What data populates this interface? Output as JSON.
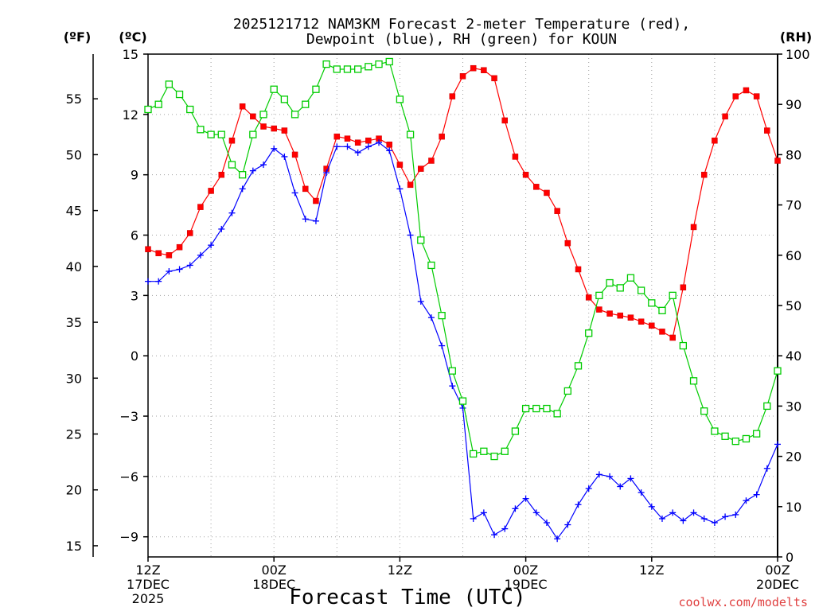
{
  "chart_data": {
    "type": "line",
    "title_line1": "2025121712 NAM3KM Forecast 2-meter Temperature (red),",
    "title_line2": "Dewpoint (blue), RH (green) for KOUN",
    "xlabel": "Forecast Time (UTC)",
    "watermark": "coolwx.com/modelts",
    "unit_labels": {
      "fahrenheit": "(ºF)",
      "celsius": "(ºC)",
      "rh": "(RH)"
    },
    "x_range_hours": [
      0,
      60
    ],
    "celsius_range": [
      -10,
      15
    ],
    "celsius_ticks": [
      "15",
      "12",
      "9",
      "6",
      "3",
      "0",
      "−3",
      "−6",
      "−9"
    ],
    "celsius_values": [
      15,
      12,
      9,
      6,
      3,
      0,
      -3,
      -6,
      -9
    ],
    "fahrenheit_ticks": [
      "55",
      "50",
      "45",
      "40",
      "35",
      "30",
      "25",
      "20",
      "15"
    ],
    "fahrenheit_values": [
      55,
      50,
      45,
      40,
      35,
      30,
      25,
      20,
      15
    ],
    "rh_range": [
      0,
      100
    ],
    "rh_ticks": [
      "100",
      "90",
      "80",
      "70",
      "60",
      "50",
      "40",
      "30",
      "20",
      "10",
      "0"
    ],
    "rh_values": [
      100,
      90,
      80,
      70,
      60,
      50,
      40,
      30,
      20,
      10,
      0
    ],
    "x_ticks": [
      {
        "hour": 0,
        "line1": "12Z",
        "line2": "17DEC",
        "line3": "2025"
      },
      {
        "hour": 12,
        "line1": "00Z",
        "line2": "18DEC",
        "line3": ""
      },
      {
        "hour": 24,
        "line1": "12Z",
        "line2": "",
        "line3": ""
      },
      {
        "hour": 36,
        "line1": "00Z",
        "line2": "19DEC",
        "line3": ""
      },
      {
        "hour": 48,
        "line1": "12Z",
        "line2": "",
        "line3": ""
      },
      {
        "hour": 60,
        "line1": "00Z",
        "line2": "20DEC",
        "line3": ""
      }
    ],
    "series": [
      {
        "name": "Temperature",
        "color": "#ff0000",
        "marker": "filled-square",
        "axis": "celsius",
        "values": [
          5.3,
          5.1,
          5.0,
          5.4,
          6.1,
          7.4,
          8.2,
          9.0,
          10.7,
          12.4,
          11.9,
          11.4,
          11.3,
          11.2,
          10.0,
          8.3,
          7.7,
          9.3,
          10.9,
          10.8,
          10.6,
          10.7,
          10.8,
          10.5,
          9.5,
          8.5,
          9.3,
          9.7,
          10.9,
          12.9,
          13.9,
          14.3,
          14.2,
          13.8,
          11.7,
          9.9,
          9.0,
          8.4,
          8.1,
          7.2,
          5.6,
          4.3,
          2.9,
          2.3,
          2.1,
          2.0,
          1.9,
          1.7,
          1.5,
          1.2,
          0.9,
          3.4,
          6.4,
          9.0,
          10.7,
          11.9,
          12.9,
          13.2,
          12.9,
          11.2,
          9.7
        ]
      },
      {
        "name": "Dewpoint",
        "color": "#0000ff",
        "marker": "plus",
        "axis": "celsius",
        "values": [
          3.7,
          3.7,
          4.2,
          4.3,
          4.5,
          5.0,
          5.5,
          6.3,
          7.1,
          8.3,
          9.2,
          9.5,
          10.3,
          9.9,
          8.1,
          6.8,
          6.7,
          9.1,
          10.4,
          10.4,
          10.1,
          10.4,
          10.6,
          10.2,
          8.3,
          6.0,
          2.7,
          1.9,
          0.5,
          -1.5,
          -2.6,
          -8.1,
          -7.8,
          -8.9,
          -8.6,
          -7.6,
          -7.1,
          -7.8,
          -8.3,
          -9.1,
          -8.4,
          -7.4,
          -6.6,
          -5.9,
          -6.0,
          -6.5,
          -6.1,
          -6.8,
          -7.5,
          -8.1,
          -7.8,
          -8.2,
          -7.8,
          -8.1,
          -8.3,
          -8.0,
          -7.9,
          -7.2,
          -6.9,
          -5.6,
          -4.4
        ]
      },
      {
        "name": "RH",
        "color": "#00cc00",
        "marker": "open-square",
        "axis": "rh",
        "values": [
          89,
          90,
          94,
          92,
          89,
          85,
          84,
          84,
          78,
          76,
          84,
          88,
          93,
          91,
          88,
          90,
          93,
          98,
          97,
          97,
          97,
          97.5,
          98,
          98.5,
          91,
          84,
          63,
          58,
          48,
          37,
          31,
          20.5,
          21,
          20,
          21,
          25,
          29.5,
          29.5,
          29.5,
          28.5,
          33,
          38,
          44.5,
          52,
          54.5,
          53.5,
          55.5,
          53,
          50.5,
          49,
          52,
          42,
          35,
          29,
          25,
          24,
          23,
          23.5,
          24.5,
          30,
          37
        ]
      }
    ]
  }
}
